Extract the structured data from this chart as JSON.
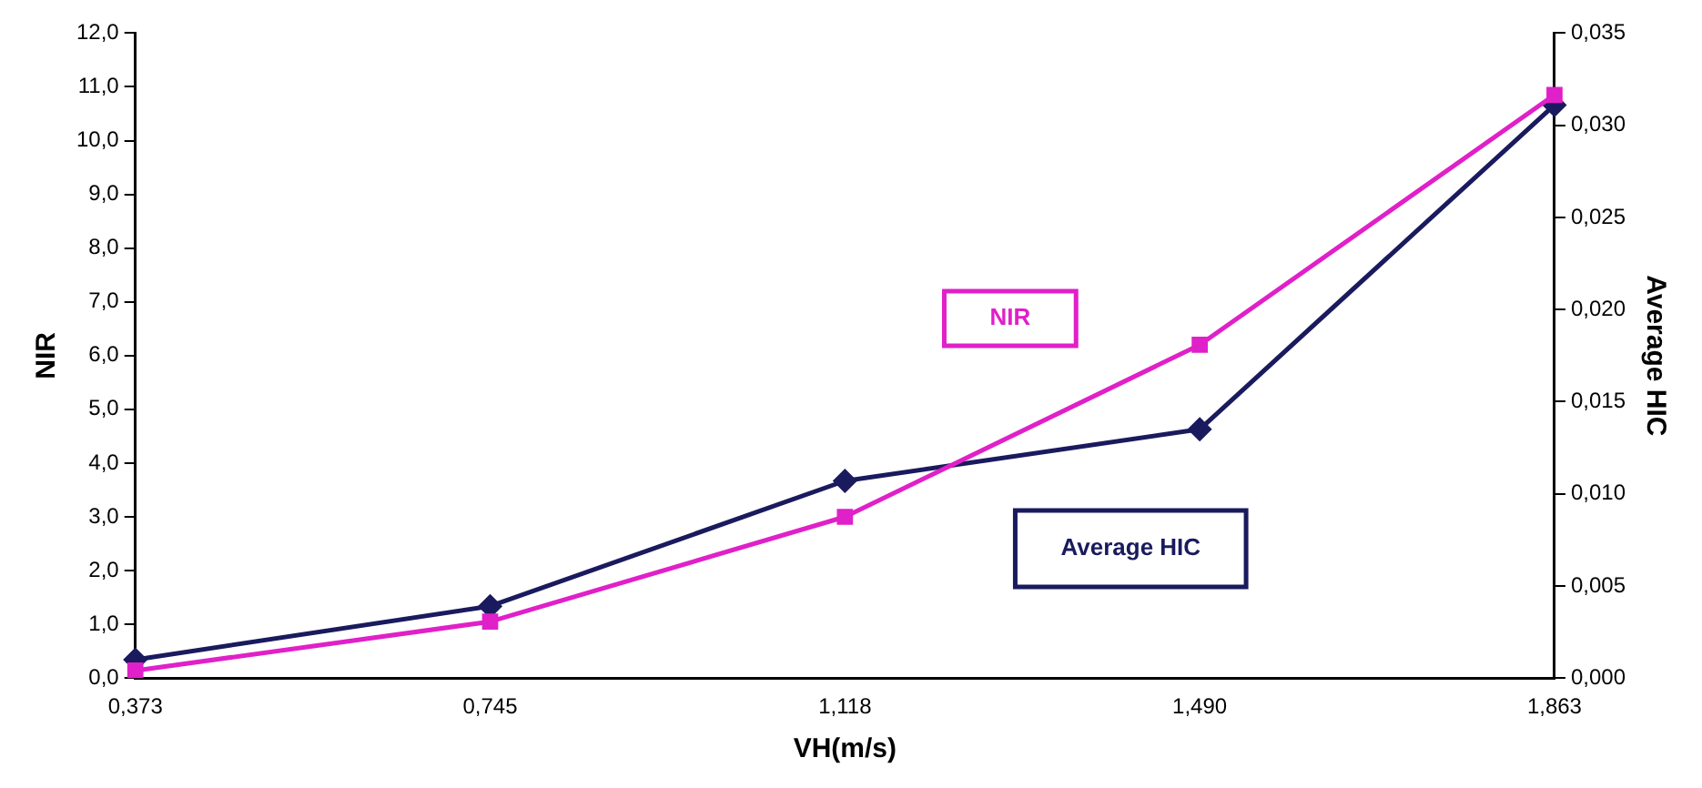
{
  "chart_data": {
    "type": "line",
    "xlabel": "VH(m/s)",
    "ylabel": "NIR",
    "y2label": "Average HIC",
    "categories": [
      "0,373",
      "0,745",
      "1,118",
      "1,490",
      "1,863"
    ],
    "series": [
      {
        "name": "NIR",
        "color": "#e020c8",
        "marker": "square",
        "values": [
          0.14,
          1.05,
          3.0,
          6.2,
          10.85
        ]
      },
      {
        "name": "Average HIC",
        "color": "#1a1a5e",
        "marker": "diamond",
        "axis": "y2",
        "values": [
          0.001,
          0.0039,
          0.0107,
          0.0135,
          0.0311
        ]
      }
    ],
    "ylim": [
      0,
      12
    ],
    "yticks": [
      {
        "value": 0,
        "label": "0,0"
      },
      {
        "value": 1,
        "label": "1,0"
      },
      {
        "value": 2,
        "label": "2,0"
      },
      {
        "value": 3,
        "label": "3,0"
      },
      {
        "value": 4,
        "label": "4,0"
      },
      {
        "value": 5,
        "label": "5,0"
      },
      {
        "value": 6,
        "label": "6,0"
      },
      {
        "value": 7,
        "label": "7,0"
      },
      {
        "value": 8,
        "label": "8,0"
      },
      {
        "value": 9,
        "label": "9,0"
      },
      {
        "value": 10,
        "label": "10,0"
      },
      {
        "value": 11,
        "label": "11,0"
      },
      {
        "value": 12,
        "label": "12,0"
      }
    ],
    "y2lim": [
      0,
      0.035
    ],
    "y2ticks": [
      {
        "value": 0,
        "label": "0,000"
      },
      {
        "value": 0.005,
        "label": "0,005"
      },
      {
        "value": 0.01,
        "label": "0,010"
      },
      {
        "value": 0.015,
        "label": "0,015"
      },
      {
        "value": 0.02,
        "label": "0,020"
      },
      {
        "value": 0.025,
        "label": "0,025"
      },
      {
        "value": 0.03,
        "label": "0,030"
      },
      {
        "value": 0.035,
        "label": "0,035"
      }
    ],
    "grid": false,
    "legend": false,
    "line_style": "solid"
  }
}
